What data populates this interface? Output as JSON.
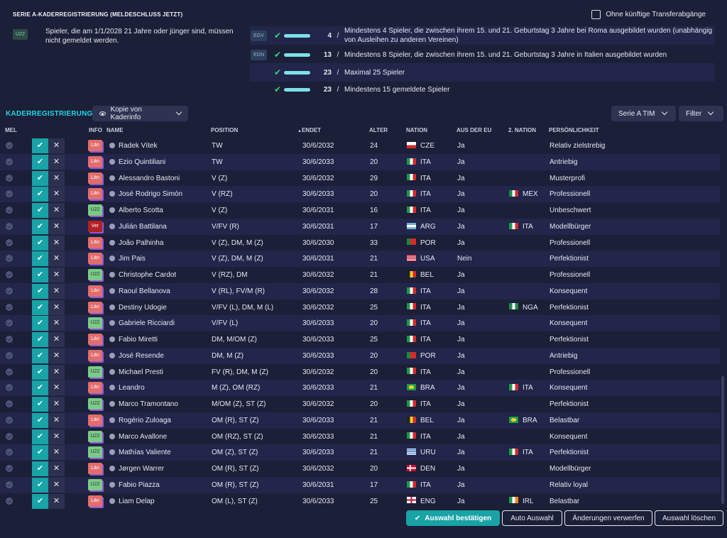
{
  "header": {
    "title": "SERIE A-KADERREGISTRIERUNG (MELDESCHLUSS JETZT)",
    "checkbox_label": "Ohne künftige Transferabgänge"
  },
  "rule": {
    "tag": "U22",
    "text": "Spieler, die am 1/1/2028 21 Jahre oder jünger sind, müssen nicht gemeldet werden."
  },
  "quotas": [
    {
      "tag": "EGV",
      "count": "4",
      "slash": "/",
      "text": "Mindestens 4 Spieler, die zwischen ihrem 15. und 21. Geburtstag 3 Jahre bei Roma ausgebildet wurden (unabhängig von Ausleihen zu anderen Vereinen)"
    },
    {
      "tag": "EGN",
      "count": "13",
      "slash": "/",
      "text": "Mindestens 8 Spieler, die zwischen ihrem 15. und 21. Geburtstag 3 Jahre in Italien ausgebildet wurden"
    },
    {
      "tag": "",
      "count": "23",
      "slash": "/",
      "text": "Maximal 25 Spieler"
    },
    {
      "tag": "",
      "count": "23",
      "slash": "/",
      "text": "Mindestens 15 gemeldete Spieler"
    }
  ],
  "toolbar": {
    "section_title": "KADERREGISTRIERUNG",
    "copy_label": "Kopie von Kaderinfo",
    "league_label": "Serie A TIM",
    "filter_label": "Filter"
  },
  "columns": {
    "mel": "MEL",
    "info": "INFO",
    "name": "NAME",
    "position": "POSITION",
    "ends": "ENDET",
    "age": "ALTER",
    "nation": "NATION",
    "eu": "AUS DER EU",
    "nation2": "2. NATION",
    "personality": "PERSÖNLICHKEIT"
  },
  "colors": {
    "accent": "#22d4e6",
    "confirm": "#18a3a6",
    "check": "#3ad07a"
  },
  "players": [
    {
      "info": "Län",
      "name": "Radek Vítek",
      "pos": "TW",
      "ends": "30/6/2032",
      "age": "24",
      "nation": "CZE",
      "flag": "cze",
      "eu": "Ja",
      "n2": "",
      "flag2": "",
      "pers": "Relativ zielstrebig"
    },
    {
      "info": "Län",
      "name": "Ezio Quintiliani",
      "pos": "TW",
      "ends": "30/6/2033",
      "age": "20",
      "nation": "ITA",
      "flag": "ita",
      "eu": "Ja",
      "n2": "",
      "flag2": "",
      "pers": "Antriebig"
    },
    {
      "info": "Län",
      "name": "Alessandro Bastoni",
      "pos": "V (Z)",
      "ends": "30/6/2032",
      "age": "29",
      "nation": "ITA",
      "flag": "ita",
      "eu": "Ja",
      "n2": "",
      "flag2": "",
      "pers": "Musterprofi"
    },
    {
      "info": "Län",
      "name": "José Rodrigo Simón",
      "pos": "V (RZ)",
      "ends": "30/6/2033",
      "age": "20",
      "nation": "ITA",
      "flag": "ita",
      "eu": "Ja",
      "n2": "MEX",
      "flag2": "mex",
      "pers": "Professionell"
    },
    {
      "info": "U22",
      "name": "Alberto Scotta",
      "pos": "V (Z)",
      "ends": "30/6/2031",
      "age": "16",
      "nation": "ITA",
      "flag": "ita",
      "eu": "Ja",
      "n2": "",
      "flag2": "",
      "pers": "Unbeschwert"
    },
    {
      "info": "Ver",
      "name": "Julián Battilana",
      "pos": "V/FV (R)",
      "ends": "30/6/2031",
      "age": "17",
      "nation": "ARG",
      "flag": "arg",
      "eu": "Ja",
      "n2": "ITA",
      "flag2": "ita",
      "pers": "Modellbürger"
    },
    {
      "info": "Län",
      "name": "João Palhinha",
      "pos": "V (Z), DM, M (Z)",
      "ends": "30/6/2030",
      "age": "33",
      "nation": "POR",
      "flag": "por",
      "eu": "Ja",
      "n2": "",
      "flag2": "",
      "pers": "Professionell"
    },
    {
      "info": "Län",
      "name": "Jim Pais",
      "pos": "V (Z), DM, M (Z)",
      "ends": "30/6/2031",
      "age": "21",
      "nation": "USA",
      "flag": "usa",
      "eu": "Nein",
      "n2": "",
      "flag2": "",
      "pers": "Perfektionist"
    },
    {
      "info": "U22",
      "name": "Christophe Cardot",
      "pos": "V (RZ), DM",
      "ends": "30/6/2032",
      "age": "21",
      "nation": "BEL",
      "flag": "bel",
      "eu": "Ja",
      "n2": "",
      "flag2": "",
      "pers": "Professionell"
    },
    {
      "info": "Län",
      "name": "Raoul Bellanova",
      "pos": "V (RL), FV/M (R)",
      "ends": "30/6/2032",
      "age": "28",
      "nation": "ITA",
      "flag": "ita",
      "eu": "Ja",
      "n2": "",
      "flag2": "",
      "pers": "Konsequent"
    },
    {
      "info": "Län",
      "name": "Destiny Udogie",
      "pos": "V/FV (L), DM, M (L)",
      "ends": "30/6/2032",
      "age": "25",
      "nation": "ITA",
      "flag": "ita",
      "eu": "Ja",
      "n2": "NGA",
      "flag2": "nga",
      "pers": "Perfektionist"
    },
    {
      "info": "U22",
      "name": "Gabriele Ricciardi",
      "pos": "V/FV (L)",
      "ends": "30/6/2033",
      "age": "20",
      "nation": "ITA",
      "flag": "ita",
      "eu": "Ja",
      "n2": "",
      "flag2": "",
      "pers": "Konsequent"
    },
    {
      "info": "Län",
      "name": "Fabio Miretti",
      "pos": "DM, M/OM (Z)",
      "ends": "30/6/2033",
      "age": "25",
      "nation": "ITA",
      "flag": "ita",
      "eu": "Ja",
      "n2": "",
      "flag2": "",
      "pers": "Perfektionist"
    },
    {
      "info": "Län",
      "name": "José Resende",
      "pos": "DM, M (Z)",
      "ends": "30/6/2033",
      "age": "20",
      "nation": "POR",
      "flag": "por",
      "eu": "Ja",
      "n2": "",
      "flag2": "",
      "pers": "Antriebig"
    },
    {
      "info": "U22",
      "name": "Michael Presti",
      "pos": "FV (R), DM, M (Z)",
      "ends": "30/6/2032",
      "age": "20",
      "nation": "ITA",
      "flag": "ita",
      "eu": "Ja",
      "n2": "",
      "flag2": "",
      "pers": "Professionell"
    },
    {
      "info": "Län",
      "name": "Leandro",
      "pos": "M (Z), OM (RZ)",
      "ends": "30/6/2033",
      "age": "21",
      "nation": "BRA",
      "flag": "bra",
      "eu": "Ja",
      "n2": "ITA",
      "flag2": "ita",
      "pers": "Konsequent"
    },
    {
      "info": "U22",
      "name": "Marco Tramontano",
      "pos": "M/OM (Z), ST (Z)",
      "ends": "30/6/2032",
      "age": "20",
      "nation": "ITA",
      "flag": "ita",
      "eu": "Ja",
      "n2": "",
      "flag2": "",
      "pers": "Perfektionist"
    },
    {
      "info": "Län",
      "name": "Rogério Zuloaga",
      "pos": "OM (R), ST (Z)",
      "ends": "30/6/2033",
      "age": "21",
      "nation": "BEL",
      "flag": "bel",
      "eu": "Ja",
      "n2": "BRA",
      "flag2": "bra",
      "pers": "Belastbar"
    },
    {
      "info": "U22",
      "name": "Marco Avallone",
      "pos": "OM (RZ), ST (Z)",
      "ends": "30/6/2033",
      "age": "21",
      "nation": "ITA",
      "flag": "ita",
      "eu": "Ja",
      "n2": "",
      "flag2": "",
      "pers": "Konsequent"
    },
    {
      "info": "U22",
      "name": "Mathías Valiente",
      "pos": "OM (Z), ST (Z)",
      "ends": "30/6/2033",
      "age": "21",
      "nation": "URU",
      "flag": "uru",
      "eu": "Ja",
      "n2": "ITA",
      "flag2": "ita",
      "pers": "Perfektionist"
    },
    {
      "info": "Län",
      "name": "Jørgen Warrer",
      "pos": "OM (R), ST (Z)",
      "ends": "30/6/2032",
      "age": "20",
      "nation": "DEN",
      "flag": "den",
      "eu": "Ja",
      "n2": "",
      "flag2": "",
      "pers": "Modellbürger"
    },
    {
      "info": "U22",
      "name": "Fabio Piazza",
      "pos": "OM (R), ST (Z)",
      "ends": "30/6/2031",
      "age": "17",
      "nation": "ITA",
      "flag": "ita",
      "eu": "Ja",
      "n2": "",
      "flag2": "",
      "pers": "Relativ loyal"
    },
    {
      "info": "Län",
      "name": "Liam Delap",
      "pos": "OM (L), ST (Z)",
      "ends": "30/6/2033",
      "age": "25",
      "nation": "ENG",
      "flag": "eng",
      "eu": "Ja",
      "n2": "IRL",
      "flag2": "irl",
      "pers": "Belastbar"
    }
  ],
  "footer": {
    "confirm": "Auswahl bestätigen",
    "auto": "Auto Auswahl",
    "discard": "Änderungen verwerfen",
    "clear": "Auswahl löschen"
  }
}
